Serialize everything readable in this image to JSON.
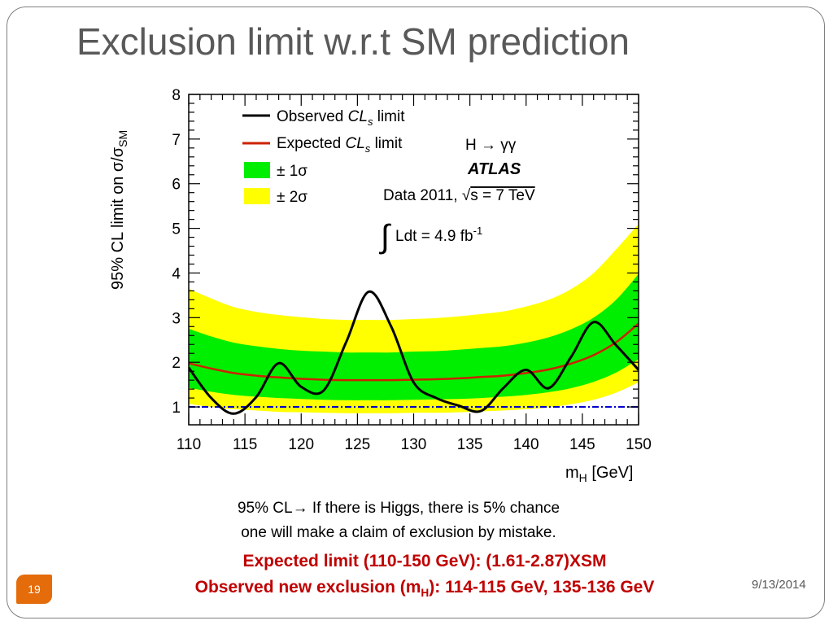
{
  "slide": {
    "title": "Exclusion limit w.r.t SM prediction",
    "note_line1": "95% CL→ If there is Higgs, there is 5% chance",
    "note_line2": "one will make a claim of exclusion by mistake.",
    "highlight_line1": "Expected limit  (110-150 GeV):  (1.61-2.87)XSM",
    "highlight_line2_pre": "Observed new exclusion  (m",
    "highlight_line2_sub": "H",
    "highlight_line2_post": "):  114-115 GeV, 135-136 GeV",
    "page_number": "19",
    "date": "9/13/2014"
  },
  "chart_data": {
    "type": "line",
    "title": "",
    "xlabel": "m",
    "xlabel_sub": "H",
    "xlabel_unit": "[GeV]",
    "ylabel": "95% CL limit on σ/σ",
    "ylabel_sub": "SM",
    "xlim": [
      110,
      150
    ],
    "ylim": [
      0.6,
      8
    ],
    "xticks": [
      110,
      115,
      120,
      125,
      130,
      135,
      140,
      145,
      150
    ],
    "yticks": [
      1,
      2,
      3,
      4,
      5,
      6,
      7,
      8
    ],
    "legend": {
      "position": "top-left",
      "observed_pre": "Observed ",
      "expected_pre": "Expected ",
      "cl": "CL",
      "cl_sub": "s",
      "suffix": " limit",
      "one_sigma": "± 1σ",
      "two_sigma": "± 2σ"
    },
    "annotations": {
      "channel": "H → γγ",
      "experiment": "ATLAS",
      "dataset_pre": "Data 2011, ",
      "sqrt": "√",
      "dataset_post": "s = 7 TeV",
      "integral": "∫",
      "lumi_pre": "Ldt = 4.9 fb",
      "lumi_sup": "-1"
    },
    "colors": {
      "observed": "#000000",
      "expected": "#cc2200",
      "band_1sigma": "#00ee00",
      "band_2sigma": "#ffff00",
      "reference": "#0000cc"
    },
    "reference_line": 1,
    "x": [
      110,
      112,
      114,
      116,
      118,
      120,
      122,
      124,
      126,
      128,
      130,
      132,
      134,
      136,
      138,
      140,
      142,
      144,
      146,
      148,
      150
    ],
    "series": [
      {
        "name": "Observed CLs limit",
        "values": [
          1.88,
          1.2,
          0.85,
          1.22,
          1.98,
          1.45,
          1.37,
          2.45,
          3.58,
          2.8,
          1.55,
          1.2,
          1.03,
          0.91,
          1.43,
          1.83,
          1.42,
          2.12,
          2.9,
          2.38,
          1.83
        ]
      },
      {
        "name": "Expected CLs limit",
        "values": [
          1.98,
          1.86,
          1.76,
          1.7,
          1.66,
          1.63,
          1.61,
          1.6,
          1.6,
          1.6,
          1.61,
          1.62,
          1.64,
          1.67,
          1.7,
          1.76,
          1.84,
          1.97,
          2.16,
          2.45,
          2.87
        ]
      }
    ],
    "band_1sigma": {
      "low": [
        1.43,
        1.34,
        1.27,
        1.23,
        1.2,
        1.18,
        1.16,
        1.15,
        1.15,
        1.15,
        1.16,
        1.17,
        1.18,
        1.2,
        1.23,
        1.27,
        1.33,
        1.42,
        1.56,
        1.77,
        2.07
      ],
      "high": [
        2.75,
        2.58,
        2.44,
        2.36,
        2.3,
        2.26,
        2.24,
        2.22,
        2.22,
        2.22,
        2.24,
        2.25,
        2.28,
        2.32,
        2.36,
        2.44,
        2.56,
        2.74,
        3.0,
        3.4,
        3.98
      ]
    },
    "band_2sigma": {
      "low": [
        1.07,
        1.0,
        0.95,
        0.92,
        0.89,
        0.88,
        0.87,
        0.86,
        0.86,
        0.86,
        0.87,
        0.87,
        0.88,
        0.9,
        0.92,
        0.95,
        0.99,
        1.06,
        1.16,
        1.32,
        1.55
      ],
      "high": [
        3.65,
        3.43,
        3.24,
        3.13,
        3.06,
        3.01,
        2.97,
        2.95,
        2.95,
        2.95,
        2.97,
        2.99,
        3.03,
        3.08,
        3.14,
        3.25,
        3.4,
        3.64,
        4.0,
        4.53,
        5.1
      ]
    }
  }
}
